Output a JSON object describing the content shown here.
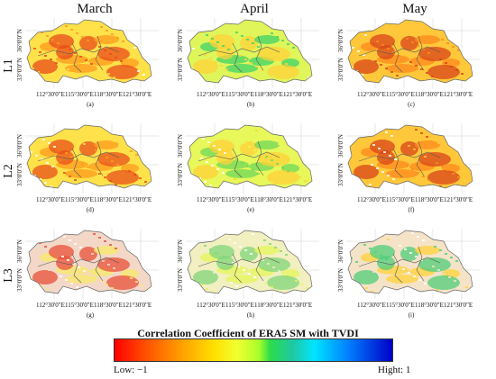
{
  "columns": [
    "March",
    "April",
    "May"
  ],
  "rows": [
    "L1",
    "L2",
    "L3"
  ],
  "lat_labels": [
    "36°0'0\"N",
    "33°0'0\"N"
  ],
  "lon_labels": [
    "112°30'0\"E",
    "115°30'0\"E",
    "118°30'0\"E",
    "121°30'0\"E"
  ],
  "panel_labels": [
    "(a)",
    "(b)",
    "(c)",
    "(d)",
    "(e)",
    "(f)",
    "(g)",
    "(h)",
    "(i)"
  ],
  "panel_tones": [
    [
      "#ffe14a",
      "#ff9a1e",
      "#e84b1a"
    ],
    [
      "#dff55a",
      "#3fd36a",
      "#ffd23a"
    ],
    [
      "#ffc83a",
      "#ff8a1e",
      "#d8451a"
    ],
    [
      "#ffe14a",
      "#ff9a1e",
      "#e8501a"
    ],
    [
      "#e8f75a",
      "#6fd85a",
      "#ffd23a"
    ],
    [
      "#ffc83a",
      "#ff8a1e",
      "#d8451a"
    ],
    [
      "#f3d8c8",
      "#f7ea6a",
      "#e8503a"
    ],
    [
      "#f2efc0",
      "#e6f55a",
      "#7fd67a"
    ],
    [
      "#f5e3c8",
      "#ffd23a",
      "#4fce7a"
    ]
  ],
  "legend": {
    "title": "Correlation Coefficient of ERA5 SM with TVDI",
    "low": "Low: −1",
    "high": "Hight: 1"
  }
}
